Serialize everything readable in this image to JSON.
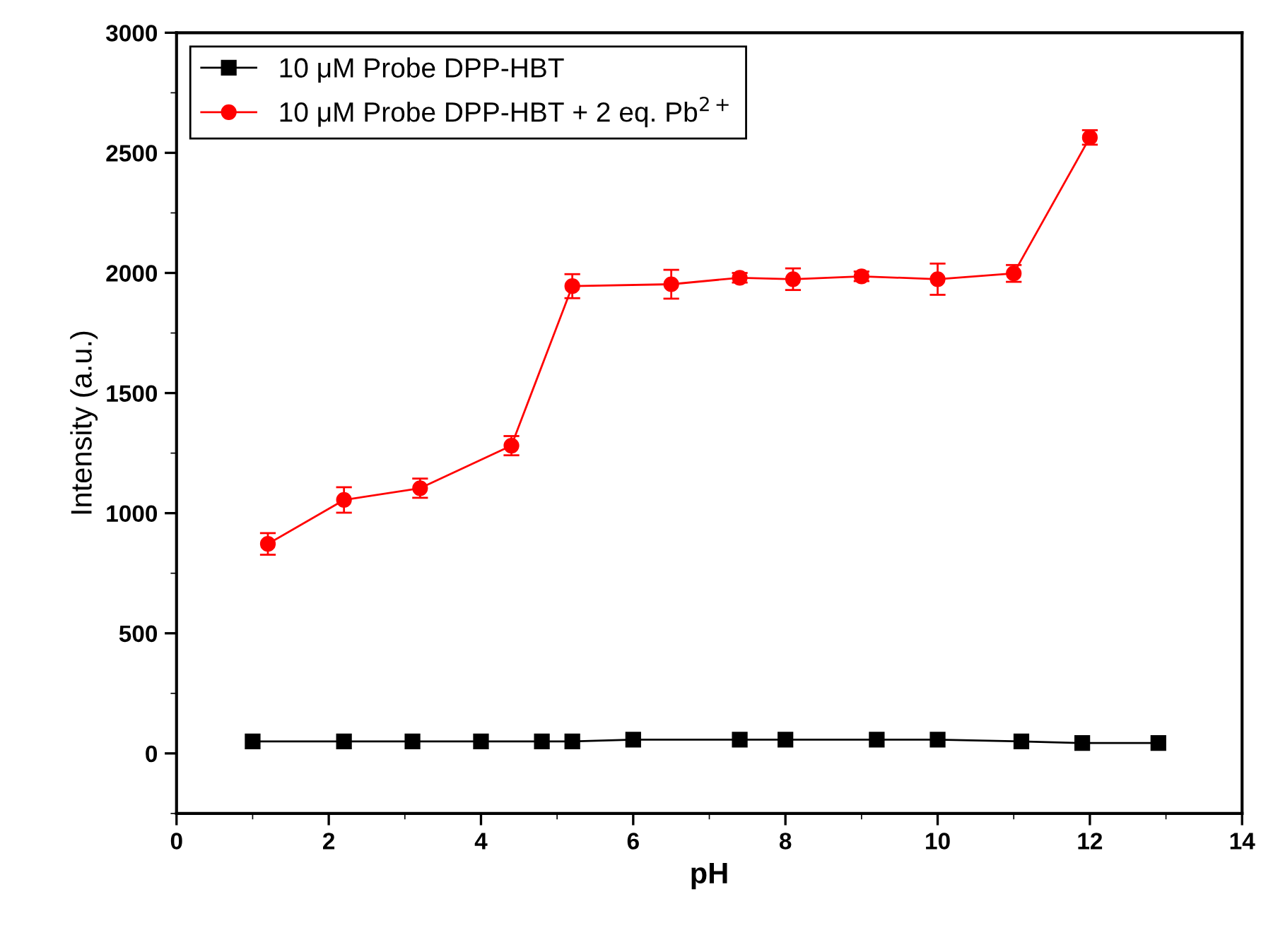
{
  "chart_data": {
    "type": "line",
    "xlabel": "pH",
    "ylabel": "Intensity (a.u.)",
    "xlim": [
      0,
      14
    ],
    "xticks": [
      0,
      2,
      4,
      6,
      8,
      10,
      12,
      14
    ],
    "ylim": [
      -250,
      3000
    ],
    "yticks": [
      0,
      500,
      1000,
      1500,
      2000,
      2500,
      3000
    ],
    "legend": "top left",
    "grid": false,
    "line_style": "solid",
    "series": [
      {
        "name": "10 μM Probe DPP-HBT",
        "color": "#000000",
        "marker": "square",
        "x": [
          1.0,
          2.2,
          3.1,
          4.0,
          4.8,
          5.2,
          6.0,
          7.4,
          8.0,
          9.2,
          10.0,
          11.1,
          11.9,
          12.9
        ],
        "values": [
          50,
          50,
          50,
          50,
          50,
          50,
          57,
          57,
          57,
          57,
          57,
          50,
          43,
          43
        ]
      },
      {
        "name": "10 μM Probe DPP-HBT + 2 eq. Pb$^{2+}$",
        "color": "#ff0000",
        "marker": "circle",
        "x": [
          1.2,
          2.2,
          3.2,
          4.4,
          5.2,
          6.5,
          7.4,
          8.1,
          9.0,
          10.0,
          11.0,
          12.0
        ],
        "values": [
          872,
          1055,
          1104,
          1281,
          1945,
          1953,
          1980,
          1974,
          1986,
          1974,
          1998,
          2564
        ],
        "errors": [
          45,
          53,
          40,
          40,
          50,
          60,
          20,
          45,
          20,
          65,
          35,
          30
        ]
      }
    ]
  }
}
